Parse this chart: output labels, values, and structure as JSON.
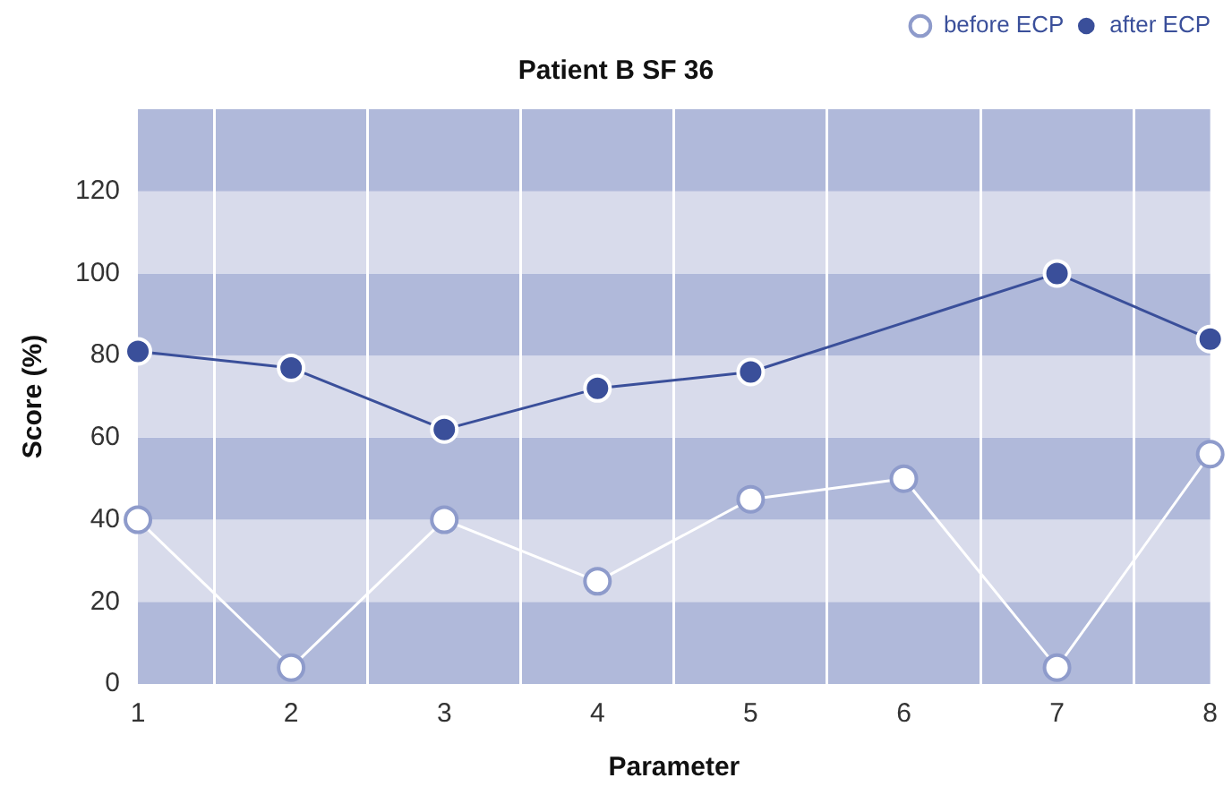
{
  "chart_data": {
    "type": "line",
    "title": "Patient B SF 36",
    "xlabel": "Parameter",
    "ylabel": "Score (%)",
    "categories": [
      "1",
      "2",
      "3",
      "4",
      "5",
      "6",
      "7",
      "8"
    ],
    "series": [
      {
        "name": "before ECP",
        "color": "#ffffff",
        "values": [
          40,
          4,
          40,
          25,
          45,
          50,
          4,
          56
        ]
      },
      {
        "name": "after ECP",
        "color": "#3a4f9a",
        "values": [
          81,
          77,
          62,
          72,
          76,
          null,
          100,
          84
        ]
      }
    ],
    "ylim": [
      0,
      140
    ],
    "yticks": [
      0,
      20,
      40,
      60,
      80,
      100,
      120
    ],
    "bands": [
      {
        "axis": "y",
        "from": 0,
        "to": 20,
        "color": "#b0b9da"
      },
      {
        "axis": "y",
        "from": 20,
        "to": 40,
        "color": "#d8dbeb"
      },
      {
        "axis": "y",
        "from": 40,
        "to": 60,
        "color": "#b0b9da"
      },
      {
        "axis": "y",
        "from": 60,
        "to": 80,
        "color": "#d8dbeb"
      },
      {
        "axis": "y",
        "from": 80,
        "to": 100,
        "color": "#b0b9da"
      },
      {
        "axis": "y",
        "from": 100,
        "to": 120,
        "color": "#d8dbeb"
      },
      {
        "axis": "y",
        "from": 120,
        "to": 140,
        "color": "#b0b9da"
      }
    ],
    "grid": "x",
    "legend": "top right",
    "marker": "circle",
    "line_style": "solid"
  }
}
